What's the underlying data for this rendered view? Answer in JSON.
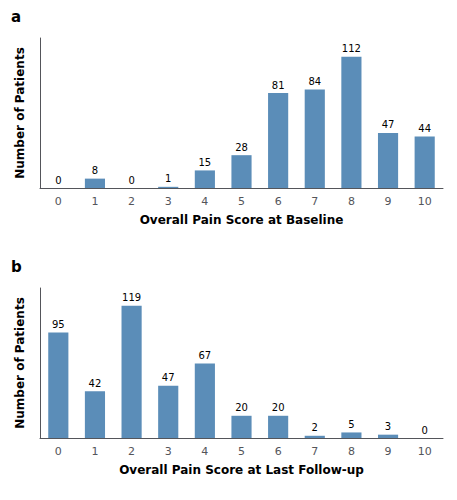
{
  "chart_data": [
    {
      "type": "bar",
      "title": "a",
      "categories": [
        0,
        1,
        2,
        3,
        4,
        5,
        6,
        7,
        8,
        9,
        10
      ],
      "values": [
        0,
        8,
        0,
        1,
        15,
        28,
        81,
        84,
        112,
        47,
        44
      ],
      "xlabel": "Overall Pain Score at Baseline",
      "ylabel": "Number of Patients",
      "color": "#5B8DB8",
      "ylim": [
        0,
        128
      ],
      "grid": false,
      "data_labels": true,
      "tick_labels": "x"
    },
    {
      "type": "bar",
      "title": "b",
      "categories": [
        0,
        1,
        2,
        3,
        4,
        5,
        6,
        7,
        8,
        9,
        10
      ],
      "values": [
        95,
        42,
        119,
        47,
        67,
        20,
        20,
        2,
        5,
        3,
        0
      ],
      "xlabel": "Overall Pain Score at Last Follow-up",
      "ylabel": "Number of Patients",
      "color": "#5B8DB8",
      "ylim": [
        0,
        135
      ],
      "grid": false,
      "data_labels": true,
      "tick_labels": "x"
    }
  ]
}
